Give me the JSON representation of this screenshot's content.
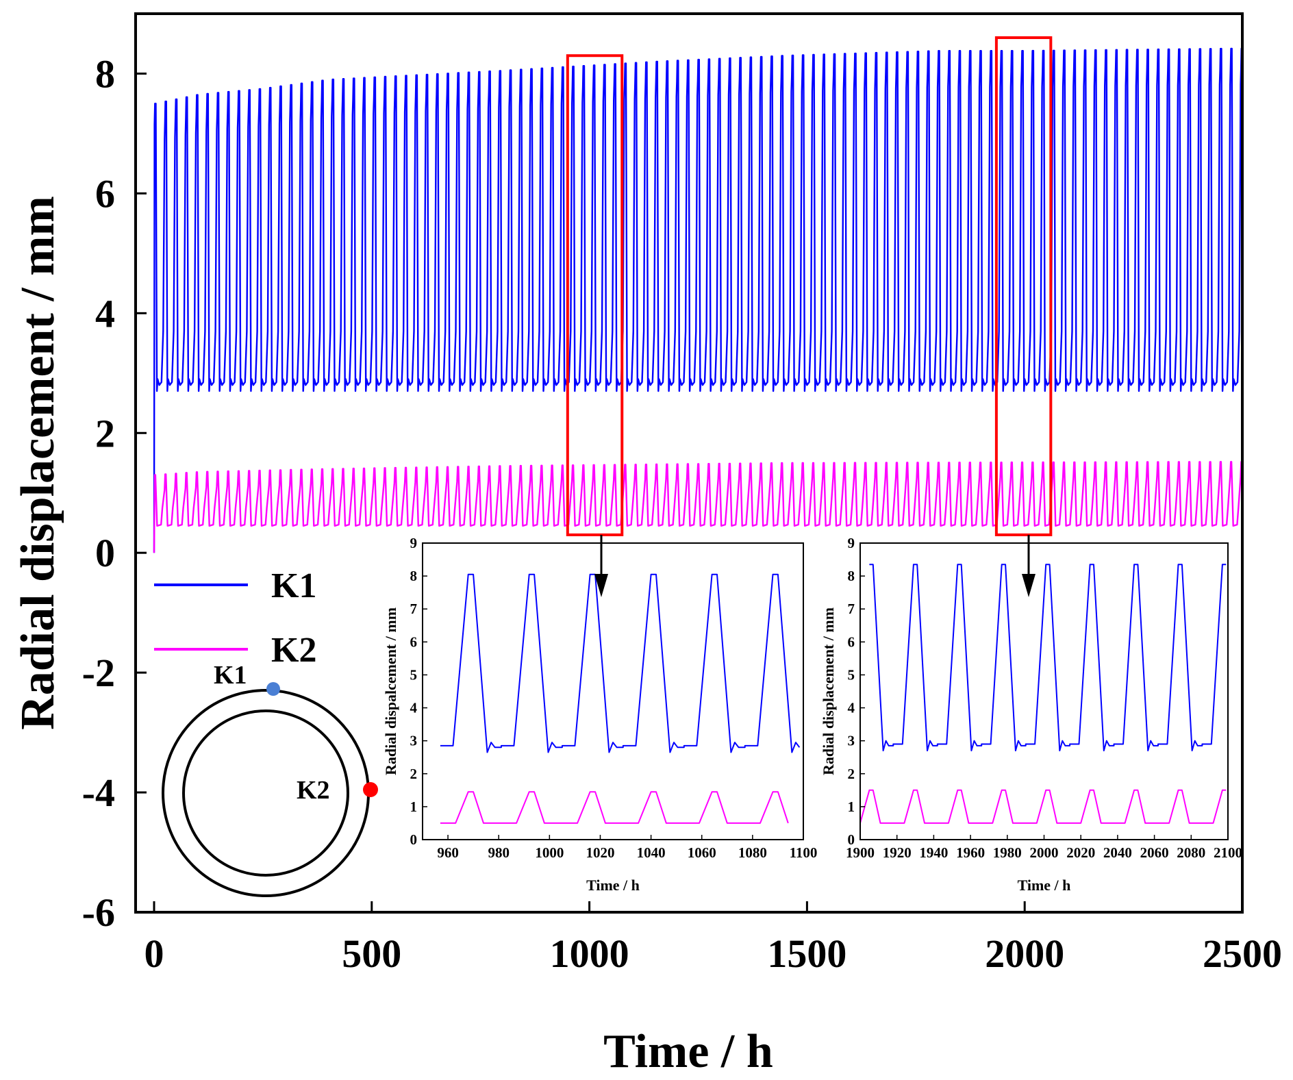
{
  "chart_data": [
    {
      "type": "line",
      "id": "main",
      "title": "",
      "xlabel": "Time / h",
      "ylabel": "Radial displacement / mm",
      "xlim": [
        0,
        2500
      ],
      "ylim": [
        -6,
        9
      ],
      "xticks": [
        0,
        500,
        1000,
        1500,
        2000,
        2500
      ],
      "yticks": [
        -6,
        -4,
        -2,
        0,
        2,
        4,
        6,
        8
      ],
      "grid": false,
      "legend_position": "bottom-left",
      "cycle_period_h": 24,
      "series": [
        {
          "name": "K1",
          "color": "#0000ff",
          "trough": 2.8,
          "peak_envelope_x": [
            0,
            100,
            250,
            400,
            800,
            1150,
            1450,
            1800,
            2000,
            2500
          ],
          "peak_envelope_y": [
            7.5,
            7.65,
            7.75,
            7.9,
            8.05,
            8.2,
            8.3,
            8.38,
            8.38,
            8.42
          ]
        },
        {
          "name": "K2",
          "color": "#ff00ff",
          "trough": 0.45,
          "peak_envelope_x": [
            0,
            100,
            400,
            800,
            1450,
            2500
          ],
          "peak_envelope_y": [
            1.3,
            1.35,
            1.4,
            1.45,
            1.5,
            1.52
          ]
        }
      ],
      "highlight_windows": [
        {
          "x": [
            950,
            1075
          ],
          "y": [
            0.3,
            8.3
          ],
          "color": "#ff0000"
        },
        {
          "x": [
            1935,
            2060
          ],
          "y": [
            0.3,
            8.6
          ],
          "color": "#ff0000"
        }
      ]
    },
    {
      "type": "line",
      "id": "inset-1",
      "xlabel": "Time / h",
      "ylabel": "Radial dispalcement / mm",
      "xlim": [
        950,
        1100
      ],
      "ylim": [
        0,
        9
      ],
      "xticks": [
        960,
        980,
        1000,
        1020,
        1040,
        1060,
        1080,
        1100
      ],
      "yticks": [
        0,
        1,
        2,
        3,
        4,
        5,
        6,
        7,
        8,
        9
      ],
      "peak_times": [
        969,
        993,
        1017,
        1041,
        1065,
        1089
      ],
      "series": [
        {
          "name": "K1",
          "color": "#0000ff",
          "peak": 8.05,
          "trough": 2.8
        },
        {
          "name": "K2",
          "color": "#ff00ff",
          "peak": 1.45,
          "trough": 0.5
        }
      ]
    },
    {
      "type": "line",
      "id": "inset-2",
      "xlabel": "Time / h",
      "ylabel": "Radial displacement / mm",
      "xlim": [
        1900,
        2100
      ],
      "ylim": [
        0,
        9
      ],
      "xticks": [
        1900,
        1920,
        1940,
        1960,
        1980,
        2000,
        2020,
        2040,
        2060,
        2080,
        2100
      ],
      "yticks": [
        0,
        1,
        2,
        3,
        4,
        5,
        6,
        7,
        8,
        9
      ],
      "peak_times": [
        1906,
        1930,
        1954,
        1978,
        2002,
        2026,
        2050,
        2074,
        2098
      ],
      "series": [
        {
          "name": "K1",
          "color": "#0000ff",
          "peak": 8.35,
          "trough": 2.85
        },
        {
          "name": "K2",
          "color": "#ff00ff",
          "peak": 1.5,
          "trough": 0.5
        }
      ]
    }
  ],
  "legend": {
    "k1_label": "K1",
    "k2_label": "K2"
  },
  "schematic": {
    "k1_label": "K1",
    "k2_label": "K2",
    "k1_color": "#4a7fd4",
    "k2_color": "#ff0000"
  }
}
